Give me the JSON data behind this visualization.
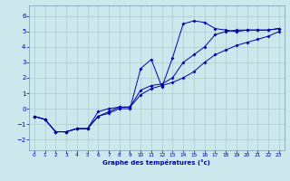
{
  "xlabel": "Graphe des températures (°c)",
  "bg_color": "#cce8ec",
  "grid_color": "#aacccc",
  "line_color": "#0000aa",
  "xlim": [
    -0.5,
    23.5
  ],
  "ylim": [
    -2.7,
    6.7
  ],
  "yticks": [
    -2,
    -1,
    0,
    1,
    2,
    3,
    4,
    5,
    6
  ],
  "xticks": [
    0,
    1,
    2,
    3,
    4,
    5,
    6,
    7,
    8,
    9,
    10,
    11,
    12,
    13,
    14,
    15,
    16,
    17,
    18,
    19,
    20,
    21,
    22,
    23
  ],
  "line1_x": [
    0,
    1,
    2,
    3,
    4,
    5,
    6,
    7,
    8,
    9,
    10,
    11,
    12,
    13,
    14,
    15,
    16,
    17,
    18,
    19,
    20,
    21,
    22,
    23
  ],
  "line1_y": [
    -0.5,
    -0.7,
    -1.5,
    -1.5,
    -1.3,
    -1.3,
    -0.5,
    -0.3,
    0.0,
    0.0,
    2.6,
    3.2,
    1.4,
    3.3,
    5.5,
    5.7,
    5.6,
    5.2,
    5.1,
    5.0,
    5.1,
    5.1,
    5.1,
    5.2
  ],
  "line2_x": [
    0,
    1,
    2,
    3,
    4,
    5,
    6,
    7,
    8,
    9,
    10,
    11,
    12,
    13,
    14,
    15,
    16,
    17,
    18,
    19,
    20,
    21,
    22,
    23
  ],
  "line2_y": [
    -0.5,
    -0.7,
    -1.5,
    -1.5,
    -1.3,
    -1.3,
    -0.5,
    -0.2,
    0.1,
    0.1,
    0.9,
    1.3,
    1.5,
    1.7,
    2.0,
    2.4,
    3.0,
    3.5,
    3.8,
    4.1,
    4.3,
    4.5,
    4.7,
    5.0
  ],
  "line3_x": [
    0,
    1,
    2,
    3,
    4,
    5,
    6,
    7,
    8,
    9,
    10,
    11,
    12,
    13,
    14,
    15,
    16,
    17,
    18,
    19,
    20,
    21,
    22,
    23
  ],
  "line3_y": [
    -0.5,
    -0.7,
    -1.5,
    -1.5,
    -1.3,
    -1.3,
    -0.2,
    0.0,
    0.1,
    0.1,
    1.2,
    1.5,
    1.6,
    2.0,
    3.0,
    3.5,
    4.0,
    4.8,
    5.0,
    5.1,
    5.1,
    5.1,
    5.1,
    5.2
  ],
  "xlabel_fontsize": 5.0,
  "xtick_fontsize": 4.2,
  "ytick_fontsize": 5.0
}
